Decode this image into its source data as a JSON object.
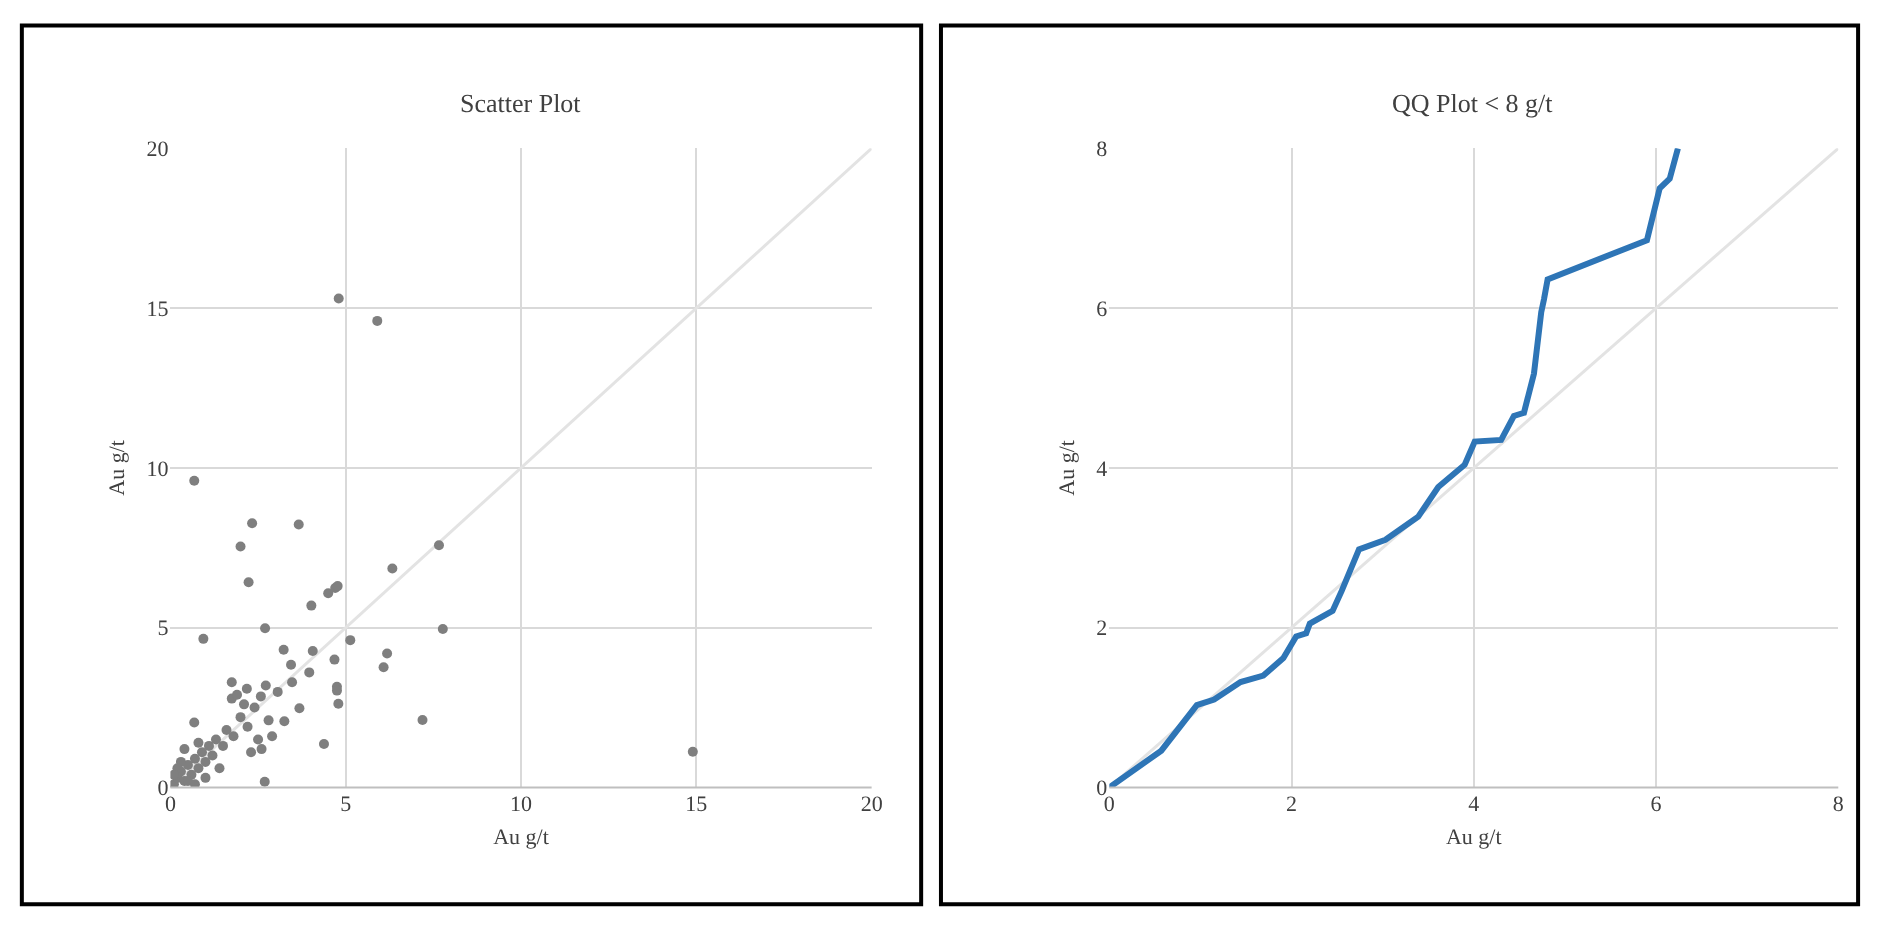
{
  "chart_data": [
    {
      "type": "scatter",
      "title": "Scatter Plot",
      "xlabel": "Au g/t",
      "ylabel": "Au g/t",
      "xlim": [
        0,
        20
      ],
      "ylim": [
        0,
        20
      ],
      "xticks": [
        0,
        5,
        10,
        15,
        20
      ],
      "yticks": [
        0,
        5,
        10,
        15,
        20
      ],
      "grid": true,
      "series": [
        {
          "type": "line",
          "color": "#e3e3e3",
          "x": [
            0,
            20
          ],
          "values": [
            0,
            20
          ]
        },
        {
          "marker": "circle",
          "color": "#7f7f7f",
          "x": [
            4.8,
            5.9,
            0.68,
            2.33,
            3.66,
            2.0,
            7.66,
            2.23,
            6.33,
            4.7,
            4.77,
            4.5,
            4.02,
            2.7,
            7.77,
            0.94,
            5.13,
            3.23,
            4.06,
            6.18,
            4.68,
            6.08,
            3.44,
            3.96,
            1.75,
            3.47,
            2.72,
            4.75,
            4.75,
            2.18,
            3.06,
            2.58,
            4.79,
            3.68,
            1.75,
            7.19,
            3.25,
            0.68,
            4.38,
            14.9,
            2.69,
            0.1,
            0.2,
            0.3,
            0.4,
            0.5,
            0.6,
            0.7,
            0.8,
            0.9,
            1.0,
            1.1,
            1.2,
            1.3,
            1.5,
            1.6,
            1.8,
            2.0,
            2.2,
            2.4,
            2.5,
            2.6,
            2.3,
            1.4,
            0.3,
            0.2,
            0.5,
            0.1,
            1.0,
            0.8,
            2.1,
            2.8,
            2.9,
            1.9,
            0.4,
            0.7
          ],
          "values": [
            15.3,
            14.6,
            9.6,
            8.27,
            8.23,
            7.54,
            7.58,
            6.42,
            6.85,
            6.24,
            6.3,
            6.08,
            5.69,
            4.98,
            4.96,
            4.65,
            4.61,
            4.31,
            4.27,
            4.19,
            4.0,
            3.76,
            3.84,
            3.6,
            3.29,
            3.29,
            3.19,
            3.15,
            3.03,
            3.09,
            2.99,
            2.85,
            2.62,
            2.48,
            2.78,
            2.11,
            2.07,
            2.03,
            1.36,
            1.12,
            0.18,
            0.1,
            0.3,
            0.5,
            0.2,
            0.7,
            0.4,
            0.9,
            0.6,
            1.1,
            0.8,
            1.3,
            1.0,
            1.5,
            1.3,
            1.8,
            1.6,
            2.2,
            1.9,
            2.5,
            1.5,
            1.2,
            1.1,
            0.6,
            0.8,
            0.6,
            0.2,
            0.4,
            0.3,
            1.4,
            2.6,
            2.1,
            1.6,
            2.9,
            1.2,
            0.1
          ]
        }
      ]
    },
    {
      "type": "line",
      "title": "QQ Plot < 8 g/t",
      "xlabel": "Au g/t",
      "ylabel": "Au g/t",
      "xlim": [
        0,
        8
      ],
      "ylim": [
        0,
        8
      ],
      "xticks": [
        0,
        2,
        4,
        6,
        8
      ],
      "yticks": [
        0,
        2,
        4,
        6,
        8
      ],
      "grid": true,
      "series": [
        {
          "type": "line",
          "color": "#e3e3e3",
          "x": [
            0,
            8
          ],
          "values": [
            0,
            8
          ]
        },
        {
          "color": "#2e75b6",
          "x": [
            0,
            0.57,
            0.96,
            1.15,
            1.44,
            1.69,
            1.91,
            2.05,
            2.16,
            2.2,
            2.45,
            2.55,
            2.74,
            3.03,
            3.39,
            3.61,
            3.9,
            4.01,
            4.3,
            4.44,
            4.55,
            4.66,
            4.74,
            4.77,
            4.81,
            5.9,
            6.04,
            6.15,
            6.24
          ],
          "values": [
            0,
            0.46,
            1.03,
            1.1,
            1.32,
            1.4,
            1.62,
            1.89,
            1.93,
            2.05,
            2.21,
            2.46,
            2.98,
            3.1,
            3.39,
            3.76,
            4.04,
            4.33,
            4.35,
            4.65,
            4.69,
            5.18,
            5.95,
            6.11,
            6.36,
            6.85,
            7.5,
            7.62,
            8.0
          ]
        }
      ]
    }
  ]
}
